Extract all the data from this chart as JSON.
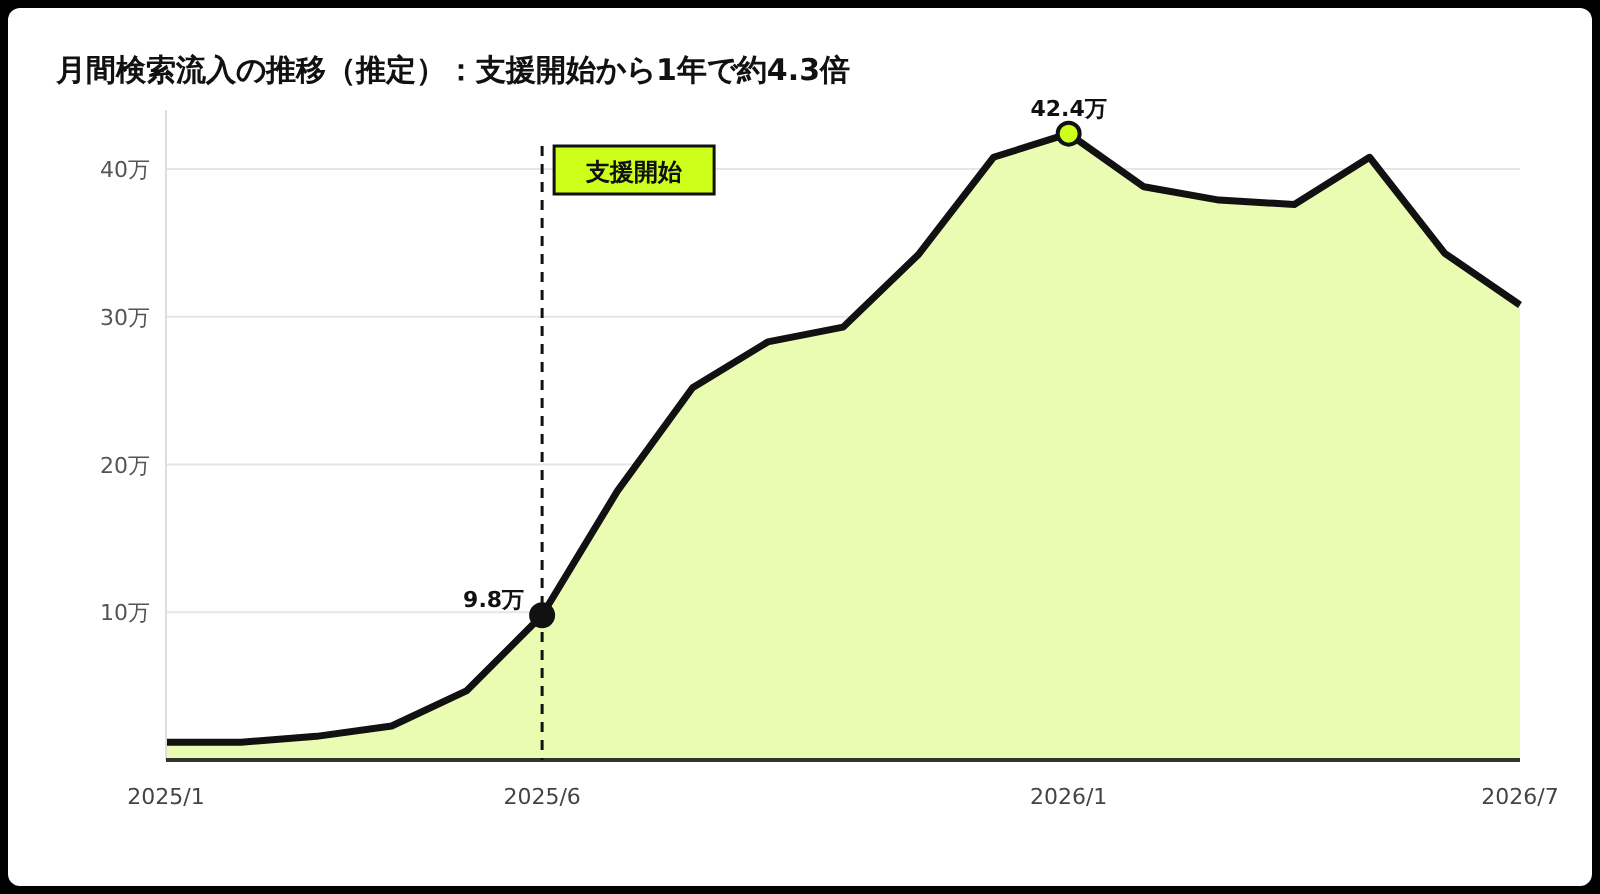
{
  "chart_data": {
    "type": "area",
    "title": "月間検索流入の推移（推定）：支援開始から1年で約4.3倍",
    "categories": [
      "2025/1",
      null,
      null,
      null,
      null,
      "2025/6",
      null,
      null,
      null,
      null,
      null,
      null,
      "2026/1",
      null,
      null,
      null,
      null,
      null,
      "2026/7"
    ],
    "series": [
      {
        "color": "#eafcb2",
        "value_labels": [
          null,
          null,
          null,
          null,
          null,
          "9.8万",
          null,
          null,
          null,
          null,
          null,
          null,
          "42.4万",
          null,
          null,
          null,
          null,
          null,
          null
        ],
        "values": [
          1.2,
          1.2,
          1.6,
          2.3,
          4.7,
          9.8,
          18.2,
          25.2,
          28.3,
          29.3,
          34.2,
          40.8,
          42.4,
          38.8,
          37.9,
          37.6,
          40.8,
          34.3,
          30.8
        ]
      }
    ],
    "ylim": [
      0,
      44
    ],
    "yticks": [
      {
        "value": 10,
        "label": "10万"
      },
      {
        "value": 20,
        "label": "20万"
      },
      {
        "value": 30,
        "label": "30万"
      },
      {
        "value": 40,
        "label": "40万"
      }
    ],
    "grid": "y",
    "ref_lines": [
      {
        "axis": "x",
        "value": "2025/6",
        "label": "支援開始",
        "color": "#111111",
        "line_style": "dashed"
      }
    ]
  }
}
